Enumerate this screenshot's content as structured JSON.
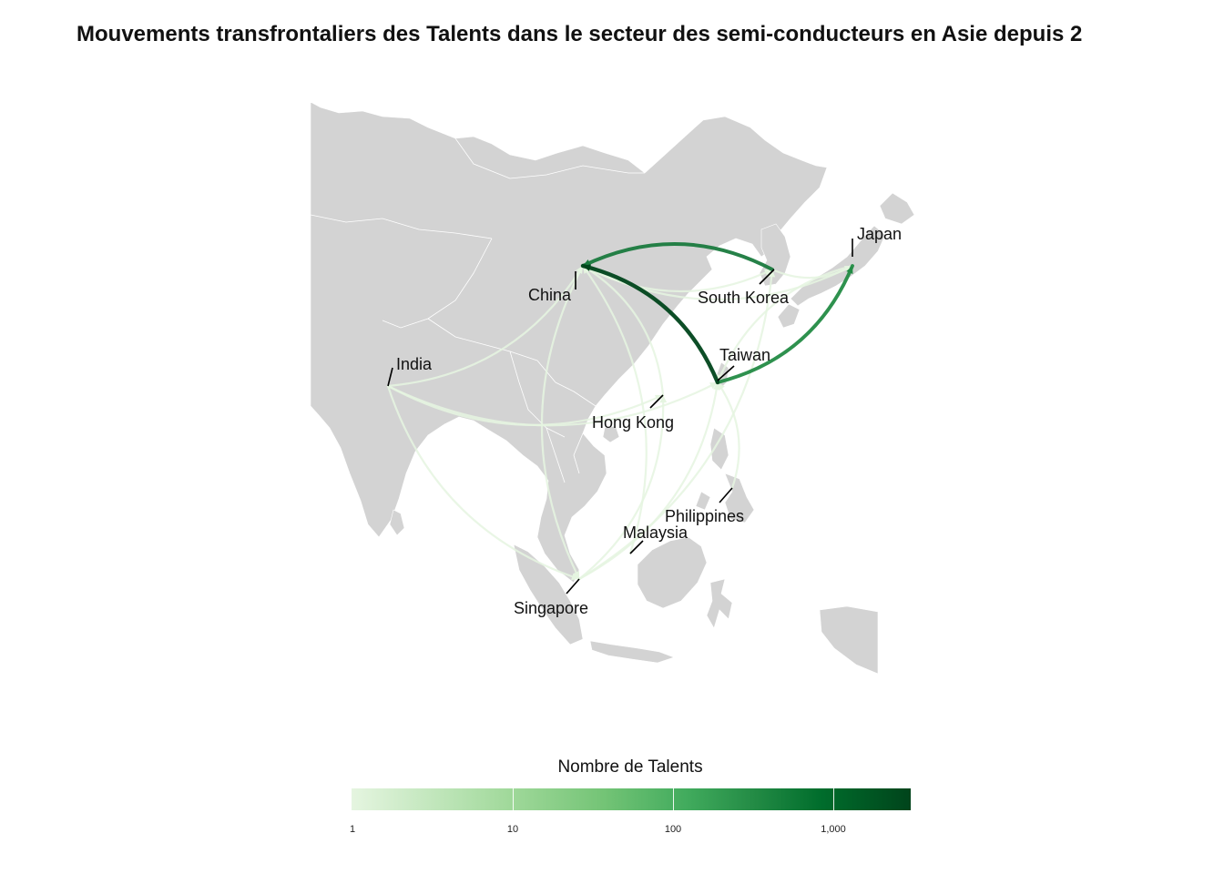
{
  "title": "Mouvements transfrontaliers des Talents dans le secteur des semi-conducteurs en Asie depuis 2",
  "legend": {
    "title": "Nombre de Talents",
    "ticks": [
      "1",
      "10",
      "100",
      "1,000"
    ],
    "colors": [
      "#e5f5e0",
      "#a1d99b",
      "#74c476",
      "#41ab5d",
      "#238b45",
      "#006d2c",
      "#00441b"
    ],
    "scale": "log10"
  },
  "map": {
    "land_color": "#d3d3d3",
    "border_color": "#ffffff",
    "countries": [
      {
        "id": "china",
        "label": "China"
      },
      {
        "id": "south_korea",
        "label": "South Korea"
      },
      {
        "id": "japan",
        "label": "Japan"
      },
      {
        "id": "india",
        "label": "India"
      },
      {
        "id": "taiwan",
        "label": "Taiwan"
      },
      {
        "id": "hong_kong",
        "label": "Hong Kong"
      },
      {
        "id": "philippines",
        "label": "Philippines"
      },
      {
        "id": "malaysia",
        "label": "Malaysia"
      },
      {
        "id": "singapore",
        "label": "Singapore"
      }
    ]
  },
  "flows": [
    {
      "from": "taiwan",
      "to": "china",
      "talents": 2500,
      "color": "#00441b"
    },
    {
      "from": "south_korea",
      "to": "china",
      "talents": 600,
      "color": "#1a7a3e"
    },
    {
      "from": "taiwan",
      "to": "japan",
      "talents": 500,
      "color": "#238b45"
    },
    {
      "from": "india",
      "to": "china",
      "talents": 2,
      "color": "#e5f5e0"
    },
    {
      "from": "india",
      "to": "taiwan",
      "talents": 2,
      "color": "#e5f5e0"
    },
    {
      "from": "india",
      "to": "singapore",
      "talents": 2,
      "color": "#e5f5e0"
    },
    {
      "from": "india",
      "to": "hong_kong",
      "talents": 2,
      "color": "#e5f5e0"
    },
    {
      "from": "china",
      "to": "japan",
      "talents": 2,
      "color": "#e5f5e0"
    },
    {
      "from": "china",
      "to": "south_korea",
      "talents": 2,
      "color": "#e5f5e0"
    },
    {
      "from": "china",
      "to": "singapore",
      "talents": 2,
      "color": "#e5f5e0"
    },
    {
      "from": "singapore",
      "to": "taiwan",
      "talents": 2,
      "color": "#e5f5e0"
    },
    {
      "from": "singapore",
      "to": "hong_kong",
      "talents": 2,
      "color": "#e5f5e0"
    },
    {
      "from": "singapore",
      "to": "south_korea",
      "talents": 2,
      "color": "#e5f5e0"
    },
    {
      "from": "philippines",
      "to": "taiwan",
      "talents": 2,
      "color": "#e5f5e0"
    },
    {
      "from": "malaysia",
      "to": "china",
      "talents": 2,
      "color": "#e5f5e0"
    },
    {
      "from": "hong_kong",
      "to": "china",
      "talents": 2,
      "color": "#e5f5e0"
    },
    {
      "from": "south_korea",
      "to": "japan",
      "talents": 2,
      "color": "#e5f5e0"
    },
    {
      "from": "japan",
      "to": "taiwan",
      "talents": 2,
      "color": "#e5f5e0"
    }
  ]
}
